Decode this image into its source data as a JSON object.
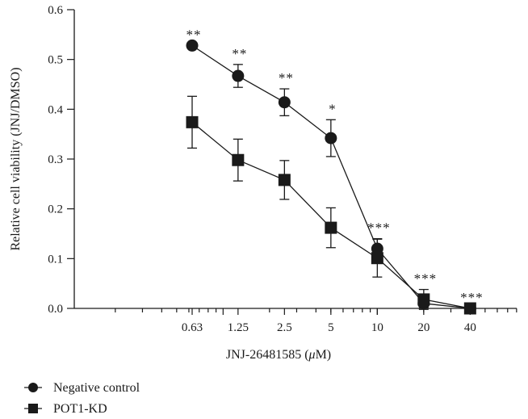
{
  "chart_data": {
    "type": "line",
    "x_scale": "log",
    "x_tick_labels": [
      "0.63",
      "1.25",
      "2.5",
      "5",
      "10",
      "20",
      "40"
    ],
    "x": [
      0.63,
      1.25,
      2.5,
      5,
      10,
      20,
      40
    ],
    "xlabel_prefix": "JNJ-26481585 (",
    "xlabel_unit_mu": "μ",
    "xlabel_suffix": "M)",
    "ylabel": "Relative cell viability (JNJ/DMSO)",
    "ylim": [
      0,
      0.6
    ],
    "y_ticks": [
      "0.0",
      "0.1",
      "0.2",
      "0.3",
      "0.4",
      "0.5",
      "0.6"
    ],
    "grid": false,
    "legend_position": "bottom-left",
    "series": [
      {
        "name": "Negative control",
        "marker": "circle",
        "values": [
          0.528,
          0.467,
          0.414,
          0.342,
          0.12,
          0.01,
          0.0
        ],
        "errors": [
          0.0,
          0.023,
          0.027,
          0.037,
          0.02,
          0.008,
          0.0
        ]
      },
      {
        "name": "POT1-KD",
        "marker": "square",
        "values": [
          0.374,
          0.298,
          0.258,
          0.162,
          0.101,
          0.018,
          0.0
        ],
        "errors": [
          0.052,
          0.042,
          0.039,
          0.04,
          0.038,
          0.02,
          0.0
        ]
      }
    ],
    "significance": [
      "**",
      "**",
      "**",
      "*",
      "***",
      "***",
      "***"
    ]
  }
}
